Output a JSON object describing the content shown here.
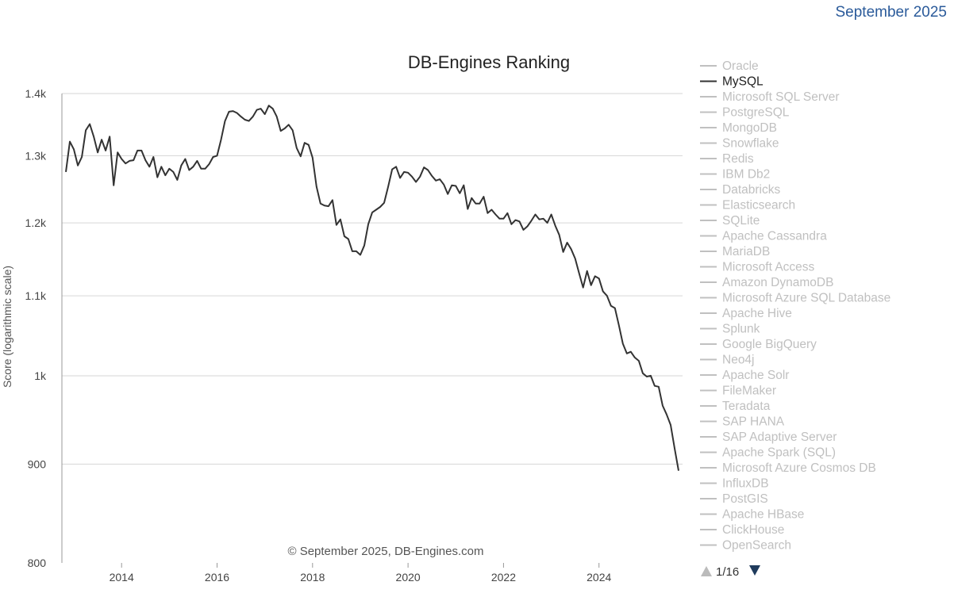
{
  "header": {
    "date": "September 2025"
  },
  "chart_data": {
    "type": "line",
    "title": "DB-Engines Ranking",
    "ylabel": "Score (logarithmic scale)",
    "xlabel": "",
    "y_scale": "log",
    "ylim": [
      800,
      1400
    ],
    "xlim": [
      "2012-10",
      "2025-10"
    ],
    "y_ticks": [
      {
        "value": 800,
        "label": "800"
      },
      {
        "value": 900,
        "label": "900"
      },
      {
        "value": 1000,
        "label": "1k"
      },
      {
        "value": 1100,
        "label": "1.1k"
      },
      {
        "value": 1200,
        "label": "1.2k"
      },
      {
        "value": 1300,
        "label": "1.3k"
      },
      {
        "value": 1400,
        "label": "1.4k"
      }
    ],
    "x_ticks": [
      "2014",
      "2016",
      "2018",
      "2020",
      "2022",
      "2024"
    ],
    "grid": "horizontal",
    "legend_position": "right",
    "credits": "© September 2025, DB-Engines.com",
    "series": [
      {
        "name": "MySQL",
        "color": "#333333",
        "points": [
          [
            "2012-11",
            1275
          ],
          [
            "2012-12",
            1322
          ],
          [
            "2013-01",
            1310
          ],
          [
            "2013-02",
            1285
          ],
          [
            "2013-03",
            1298
          ],
          [
            "2013-04",
            1340
          ],
          [
            "2013-05",
            1350
          ],
          [
            "2013-06",
            1330
          ],
          [
            "2013-07",
            1305
          ],
          [
            "2013-08",
            1325
          ],
          [
            "2013-09",
            1308
          ],
          [
            "2013-10",
            1330
          ],
          [
            "2013-11",
            1255
          ],
          [
            "2013-12",
            1305
          ],
          [
            "2014-01",
            1295
          ],
          [
            "2014-02",
            1288
          ],
          [
            "2014-03",
            1292
          ],
          [
            "2014-04",
            1293
          ],
          [
            "2014-05",
            1308
          ],
          [
            "2014-06",
            1308
          ],
          [
            "2014-07",
            1293
          ],
          [
            "2014-08",
            1283
          ],
          [
            "2014-09",
            1298
          ],
          [
            "2014-10",
            1267
          ],
          [
            "2014-11",
            1283
          ],
          [
            "2014-12",
            1270
          ],
          [
            "2015-01",
            1280
          ],
          [
            "2015-02",
            1275
          ],
          [
            "2015-03",
            1263
          ],
          [
            "2015-04",
            1285
          ],
          [
            "2015-05",
            1295
          ],
          [
            "2015-06",
            1278
          ],
          [
            "2015-07",
            1283
          ],
          [
            "2015-08",
            1292
          ],
          [
            "2015-09",
            1280
          ],
          [
            "2015-10",
            1280
          ],
          [
            "2015-11",
            1287
          ],
          [
            "2015-12",
            1298
          ],
          [
            "2016-01",
            1300
          ],
          [
            "2016-02",
            1325
          ],
          [
            "2016-03",
            1355
          ],
          [
            "2016-04",
            1370
          ],
          [
            "2016-05",
            1371
          ],
          [
            "2016-06",
            1368
          ],
          [
            "2016-07",
            1362
          ],
          [
            "2016-08",
            1357
          ],
          [
            "2016-09",
            1355
          ],
          [
            "2016-10",
            1362
          ],
          [
            "2016-11",
            1373
          ],
          [
            "2016-12",
            1375
          ],
          [
            "2017-01",
            1366
          ],
          [
            "2017-02",
            1380
          ],
          [
            "2017-03",
            1375
          ],
          [
            "2017-04",
            1362
          ],
          [
            "2017-05",
            1339
          ],
          [
            "2017-06",
            1343
          ],
          [
            "2017-07",
            1349
          ],
          [
            "2017-08",
            1340
          ],
          [
            "2017-09",
            1312
          ],
          [
            "2017-10",
            1299
          ],
          [
            "2017-11",
            1320
          ],
          [
            "2017-12",
            1317
          ],
          [
            "2018-01",
            1297
          ],
          [
            "2018-02",
            1253
          ],
          [
            "2018-03",
            1228
          ],
          [
            "2018-04",
            1225
          ],
          [
            "2018-05",
            1224
          ],
          [
            "2018-06",
            1233
          ],
          [
            "2018-07",
            1197
          ],
          [
            "2018-08",
            1205
          ],
          [
            "2018-09",
            1181
          ],
          [
            "2018-10",
            1177
          ],
          [
            "2018-11",
            1160
          ],
          [
            "2018-12",
            1160
          ],
          [
            "2019-01",
            1155
          ],
          [
            "2019-02",
            1168
          ],
          [
            "2019-03",
            1198
          ],
          [
            "2019-04",
            1215
          ],
          [
            "2019-05",
            1219
          ],
          [
            "2019-06",
            1223
          ],
          [
            "2019-07",
            1229
          ],
          [
            "2019-08",
            1253
          ],
          [
            "2019-09",
            1279
          ],
          [
            "2019-10",
            1283
          ],
          [
            "2019-11",
            1266
          ],
          [
            "2019-12",
            1275
          ],
          [
            "2020-01",
            1274
          ],
          [
            "2020-02",
            1268
          ],
          [
            "2020-03",
            1260
          ],
          [
            "2020-04",
            1268
          ],
          [
            "2020-05",
            1282
          ],
          [
            "2020-06",
            1278
          ],
          [
            "2020-07",
            1269
          ],
          [
            "2020-08",
            1262
          ],
          [
            "2020-09",
            1264
          ],
          [
            "2020-10",
            1256
          ],
          [
            "2020-11",
            1242
          ],
          [
            "2020-12",
            1255
          ],
          [
            "2021-01",
            1254
          ],
          [
            "2021-02",
            1243
          ],
          [
            "2021-03",
            1255
          ],
          [
            "2021-04",
            1220
          ],
          [
            "2021-05",
            1236
          ],
          [
            "2021-06",
            1228
          ],
          [
            "2021-07",
            1228
          ],
          [
            "2021-08",
            1238
          ],
          [
            "2021-09",
            1214
          ],
          [
            "2021-10",
            1219
          ],
          [
            "2021-11",
            1212
          ],
          [
            "2021-12",
            1206
          ],
          [
            "2022-01",
            1206
          ],
          [
            "2022-02",
            1214
          ],
          [
            "2022-03",
            1198
          ],
          [
            "2022-04",
            1204
          ],
          [
            "2022-05",
            1202
          ],
          [
            "2022-06",
            1190
          ],
          [
            "2022-07",
            1195
          ],
          [
            "2022-08",
            1203
          ],
          [
            "2022-09",
            1212
          ],
          [
            "2022-10",
            1205
          ],
          [
            "2022-11",
            1206
          ],
          [
            "2022-12",
            1200
          ],
          [
            "2023-01",
            1212
          ],
          [
            "2023-02",
            1196
          ],
          [
            "2023-03",
            1183
          ],
          [
            "2023-04",
            1159
          ],
          [
            "2023-05",
            1172
          ],
          [
            "2023-06",
            1163
          ],
          [
            "2023-07",
            1150
          ],
          [
            "2023-08",
            1130
          ],
          [
            "2023-09",
            1111
          ],
          [
            "2023-10",
            1133
          ],
          [
            "2023-11",
            1114
          ],
          [
            "2023-12",
            1126
          ],
          [
            "2024-01",
            1123
          ],
          [
            "2024-02",
            1106
          ],
          [
            "2024-03",
            1100
          ],
          [
            "2024-04",
            1087
          ],
          [
            "2024-05",
            1084
          ],
          [
            "2024-06",
            1062
          ],
          [
            "2024-07",
            1039
          ],
          [
            "2024-08",
            1027
          ],
          [
            "2024-09",
            1029
          ],
          [
            "2024-10",
            1022
          ],
          [
            "2024-11",
            1018
          ],
          [
            "2024-12",
            1003
          ],
          [
            "2025-01",
            999
          ],
          [
            "2025-02",
            1000
          ],
          [
            "2025-03",
            988
          ],
          [
            "2025-04",
            987
          ],
          [
            "2025-05",
            965
          ],
          [
            "2025-06",
            955
          ],
          [
            "2025-07",
            943
          ],
          [
            "2025-08",
            917
          ],
          [
            "2025-09",
            893
          ]
        ]
      }
    ],
    "legend": [
      {
        "name": "Oracle",
        "active": false
      },
      {
        "name": "MySQL",
        "active": true
      },
      {
        "name": "Microsoft SQL Server",
        "active": false
      },
      {
        "name": "PostgreSQL",
        "active": false
      },
      {
        "name": "MongoDB",
        "active": false
      },
      {
        "name": "Snowflake",
        "active": false
      },
      {
        "name": "Redis",
        "active": false
      },
      {
        "name": "IBM Db2",
        "active": false
      },
      {
        "name": "Databricks",
        "active": false
      },
      {
        "name": "Elasticsearch",
        "active": false
      },
      {
        "name": "SQLite",
        "active": false
      },
      {
        "name": "Apache Cassandra",
        "active": false
      },
      {
        "name": "MariaDB",
        "active": false
      },
      {
        "name": "Microsoft Access",
        "active": false
      },
      {
        "name": "Amazon DynamoDB",
        "active": false
      },
      {
        "name": "Microsoft Azure SQL Database",
        "active": false
      },
      {
        "name": "Apache Hive",
        "active": false
      },
      {
        "name": "Splunk",
        "active": false
      },
      {
        "name": "Google BigQuery",
        "active": false
      },
      {
        "name": "Neo4j",
        "active": false
      },
      {
        "name": "Apache Solr",
        "active": false
      },
      {
        "name": "FileMaker",
        "active": false
      },
      {
        "name": "Teradata",
        "active": false
      },
      {
        "name": "SAP HANA",
        "active": false
      },
      {
        "name": "SAP Adaptive Server",
        "active": false
      },
      {
        "name": "Apache Spark (SQL)",
        "active": false
      },
      {
        "name": "Microsoft Azure Cosmos DB",
        "active": false
      },
      {
        "name": "InfluxDB",
        "active": false
      },
      {
        "name": "PostGIS",
        "active": false
      },
      {
        "name": "Apache HBase",
        "active": false
      },
      {
        "name": "ClickHouse",
        "active": false
      },
      {
        "name": "OpenSearch",
        "active": false
      }
    ],
    "legend_page": "1/16",
    "colors": {
      "active_line": "#333333",
      "inactive_legend": "#c0c0c0",
      "grid": "#d6d6d6",
      "nav_up_disabled": "#bbbbbb",
      "nav_down": "#1f3b5c"
    }
  }
}
